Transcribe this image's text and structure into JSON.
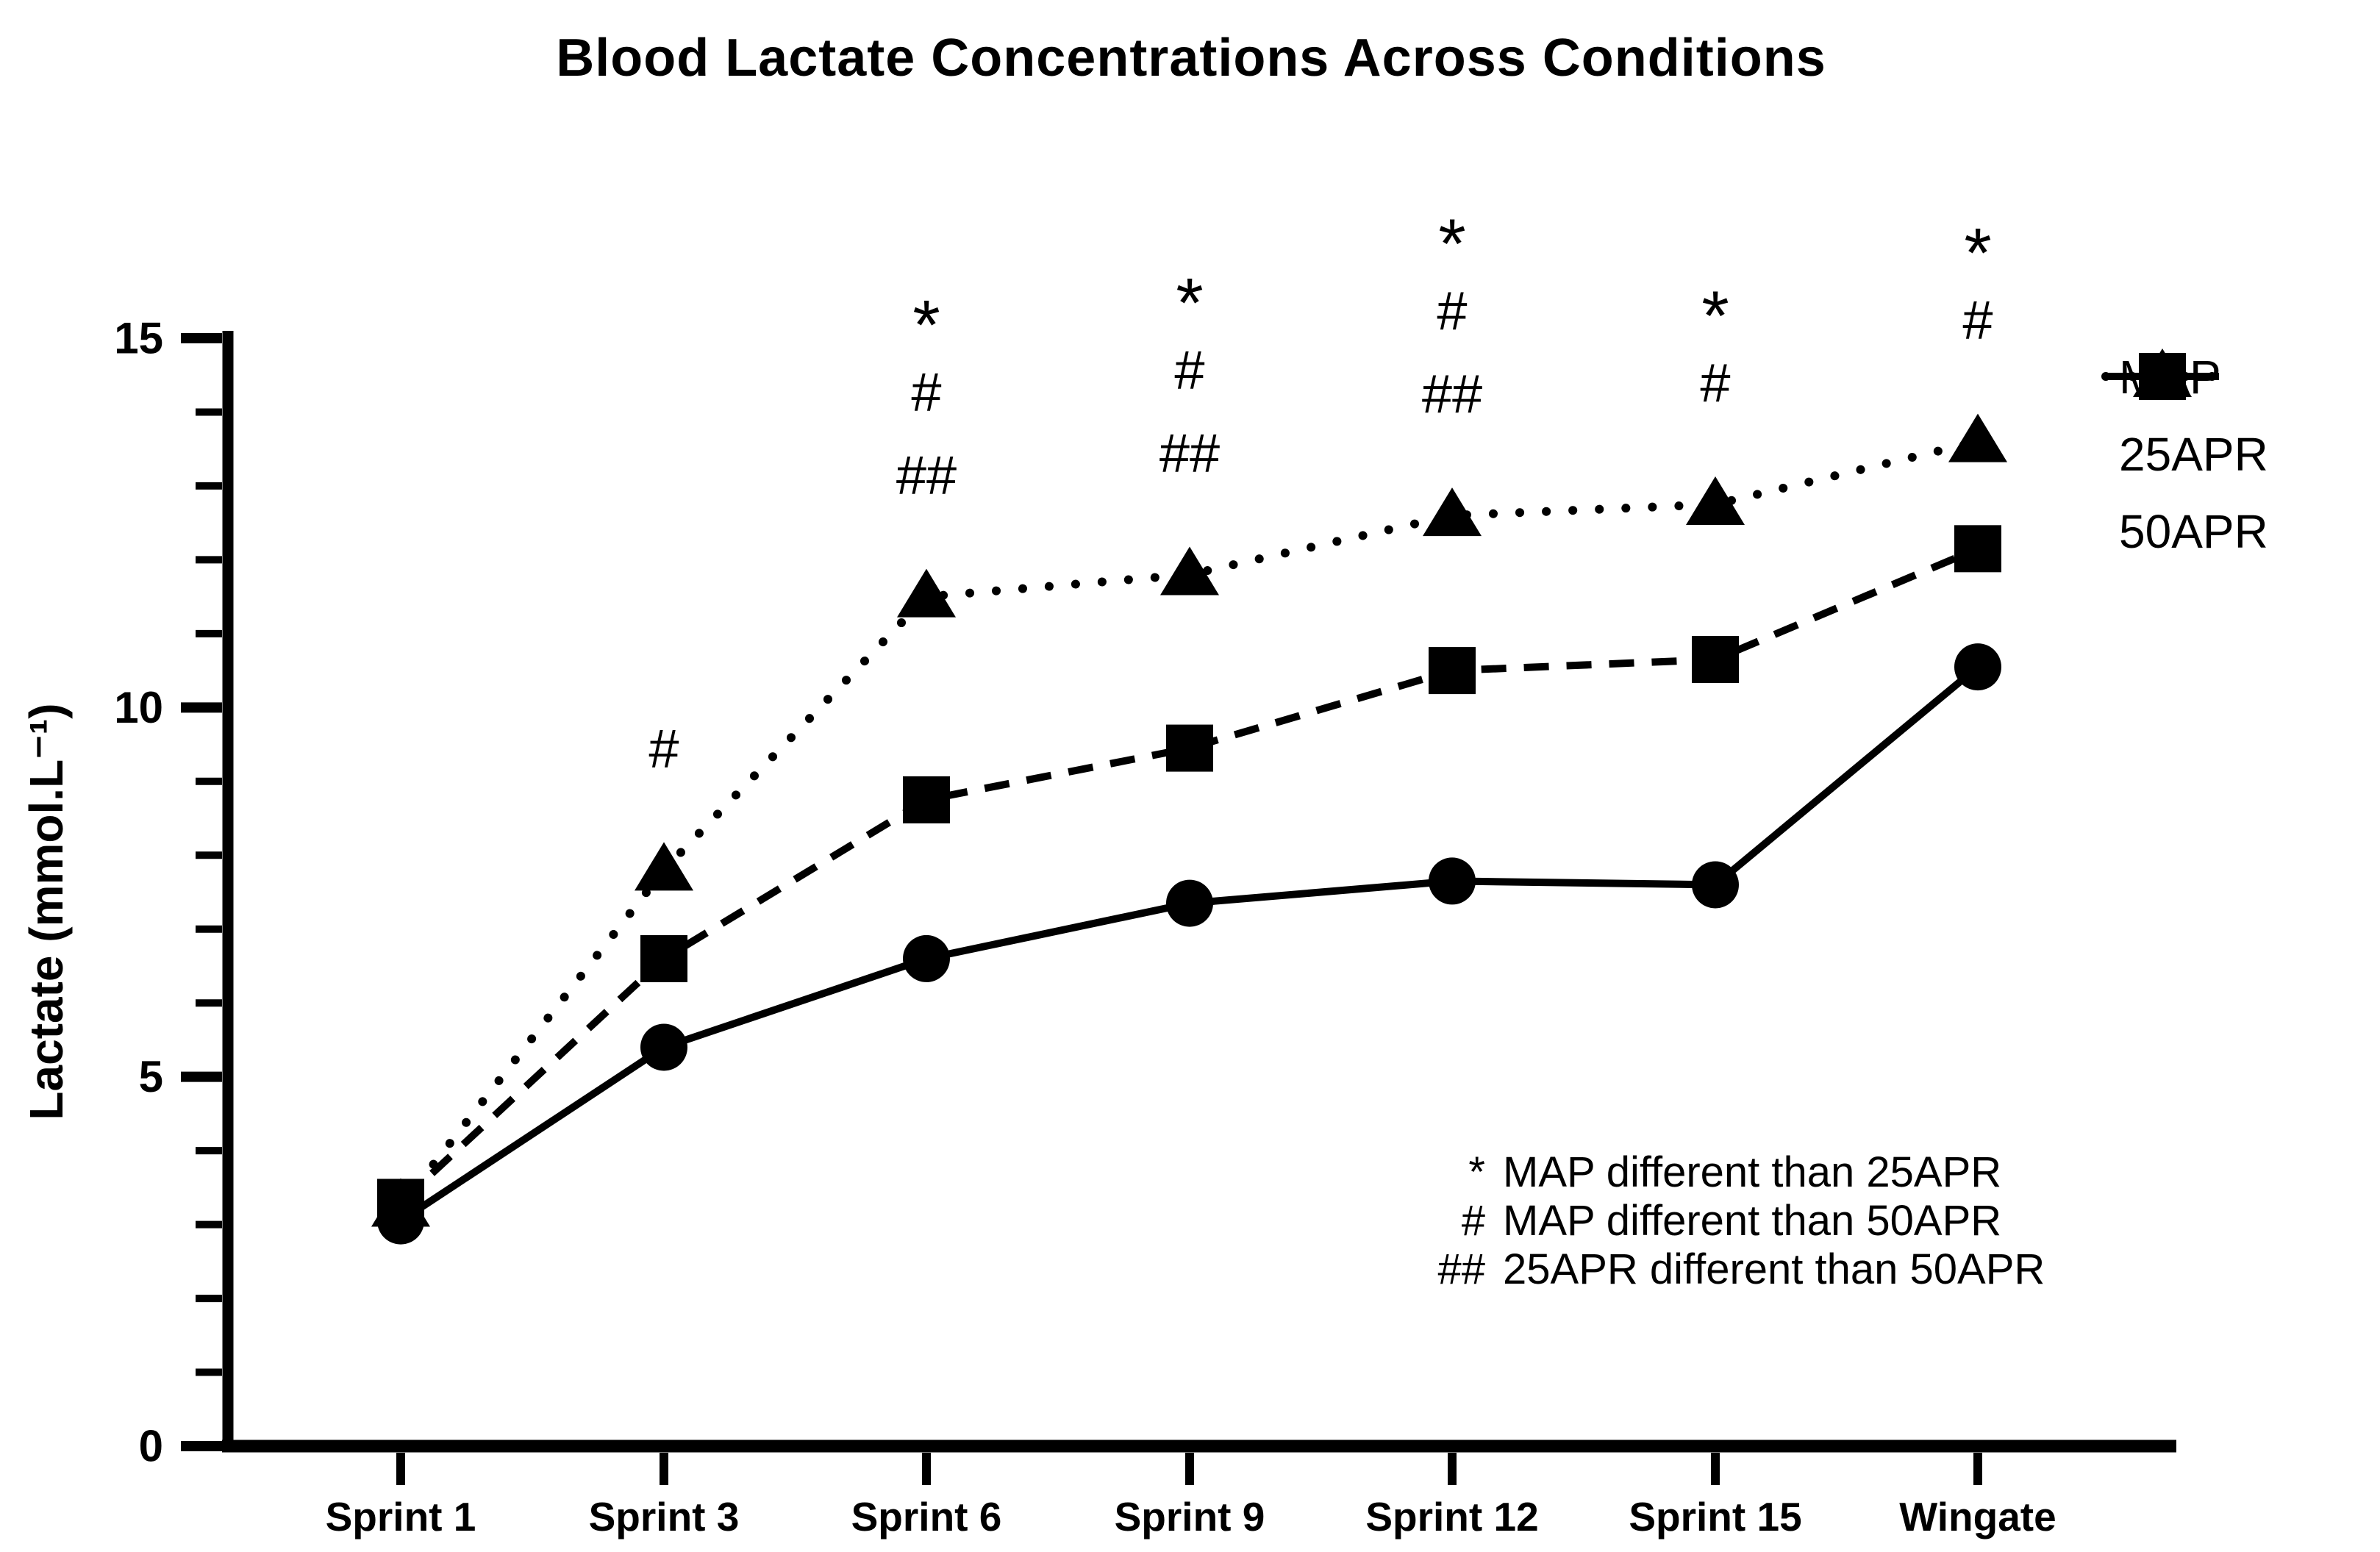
{
  "chart_data": {
    "type": "line",
    "title": "Blood Lactate Concentrations Across Conditions",
    "xlabel": "",
    "ylabel": "Lactate (mmol.L⁻¹)",
    "ylim": [
      0,
      15
    ],
    "yticks_major": [
      0,
      5,
      10,
      15
    ],
    "ytick_minor_step": 1,
    "grid": false,
    "categories": [
      "Sprint 1",
      "Sprint 3",
      "Sprint 6",
      "Sprint 9",
      "Sprint 12",
      "Sprint 15",
      "Wingate"
    ],
    "series": [
      {
        "name": "MAP",
        "marker": "circle",
        "line": "solid",
        "values": [
          3.05,
          5.4,
          6.6,
          7.35,
          7.65,
          7.6,
          10.55
        ]
      },
      {
        "name": "25APR",
        "marker": "square",
        "line": "dashed",
        "values": [
          3.3,
          6.6,
          8.75,
          9.45,
          10.5,
          10.65,
          12.15
        ]
      },
      {
        "name": "50APR",
        "marker": "triangle",
        "line": "dotted",
        "values": [
          3.25,
          7.8,
          11.5,
          11.8,
          12.6,
          12.75,
          13.6
        ]
      }
    ],
    "legend": {
      "position": "right",
      "entries": [
        "MAP",
        "25APR",
        "50APR"
      ]
    },
    "annotations": {
      "significance": [
        {
          "category": "Sprint 3",
          "symbols": [
            "#"
          ]
        },
        {
          "category": "Sprint 6",
          "symbols": [
            "*",
            "#",
            "##"
          ]
        },
        {
          "category": "Sprint 9",
          "symbols": [
            "*",
            "#",
            "##"
          ]
        },
        {
          "category": "Sprint 12",
          "symbols": [
            "*",
            "#",
            "##"
          ]
        },
        {
          "category": "Sprint 15",
          "symbols": [
            "*",
            "#"
          ]
        },
        {
          "category": "Wingate",
          "symbols": [
            "*",
            "#"
          ]
        }
      ],
      "footnotes": [
        {
          "symbol": "*",
          "text": "MAP different than 25APR"
        },
        {
          "symbol": "#",
          "text": "MAP different than 50APR"
        },
        {
          "symbol": "##",
          "text": "25APR different than 50APR"
        }
      ]
    },
    "colors": {
      "foreground": "#000000",
      "background": "#ffffff"
    }
  }
}
